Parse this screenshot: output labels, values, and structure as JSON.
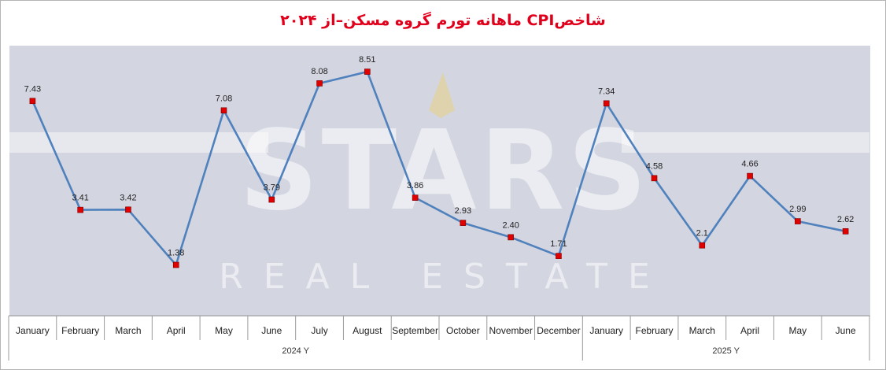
{
  "chart_data": {
    "type": "line",
    "title": "شاخصCPI ماهانه تورم گروه مسکن–از ۲۰۲۴",
    "watermark": {
      "brand": "STARS",
      "tagline": "REAL ESTATE"
    },
    "categories": [
      "January",
      "February",
      "March",
      "April",
      "May",
      "June",
      "July",
      "August",
      "September",
      "October",
      "November",
      "December",
      "January",
      "February",
      "March",
      "April",
      "May",
      "June"
    ],
    "groups": [
      {
        "label": "2024  Y",
        "count": 12
      },
      {
        "label": "2025  Y",
        "count": 6
      }
    ],
    "values": [
      7.43,
      3.41,
      3.42,
      1.38,
      7.08,
      3.79,
      8.08,
      8.51,
      3.86,
      2.93,
      2.4,
      1.71,
      7.34,
      4.58,
      2.1,
      4.66,
      2.99,
      2.62
    ],
    "value_labels": [
      "7.43",
      "3.41",
      "3.42",
      "1.38",
      "7.08",
      "3.79",
      "8.08",
      "8.51",
      "3.86",
      "2.93",
      "2.40",
      "1.71",
      "7.34",
      "4.58",
      "2.1",
      "4.66",
      "2.99",
      "2.62"
    ],
    "ylim": [
      0,
      9.5
    ],
    "grid": false,
    "line_color": "#4f81bd",
    "marker_color": "#e00000",
    "title_color": "#e0001b",
    "background_color": "#d3d5e0"
  }
}
